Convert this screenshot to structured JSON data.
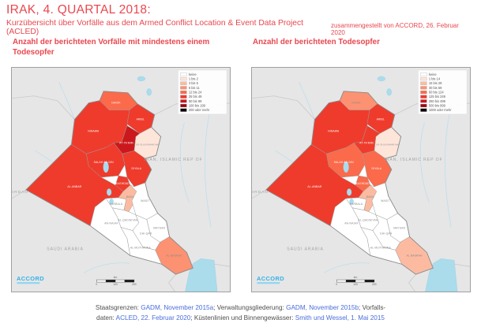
{
  "header": {
    "title": "IRAK, 4. QUARTAL 2018:",
    "subtitle": "Kurzübersicht über Vorfälle aus dem Armed Conflict Location & Event Data Project (ACLED)",
    "credit": "zusammengestellt von ACCORD, 26. Februar 2020"
  },
  "palette": [
    "#ffffff",
    "#fee5d9",
    "#fcbba1",
    "#fc9272",
    "#fb6a4a",
    "#ef3b2c",
    "#cb181d",
    "#99000d",
    "#000000"
  ],
  "water_color": "#aadcec",
  "regions": [
    {
      "id": "dihok",
      "label": "DIHOK"
    },
    {
      "id": "ninawa",
      "label": "NINAWA"
    },
    {
      "id": "arbil",
      "label": "ARBIL"
    },
    {
      "id": "sulaymaniyah",
      "label": "AS-SULAYMANIYAH"
    },
    {
      "id": "tamim",
      "label": "AT-TA'MIM"
    },
    {
      "id": "salahaddin",
      "label": "SALAH AD-DIN"
    },
    {
      "id": "diyala",
      "label": "DIYALA"
    },
    {
      "id": "baghdad",
      "label": "BAGHDAD"
    },
    {
      "id": "anbar",
      "label": "AL-ANBAR"
    },
    {
      "id": "karbala",
      "label": "KARBALA"
    },
    {
      "id": "babil",
      "label": "BABIL"
    },
    {
      "id": "wasit",
      "label": "WASIT"
    },
    {
      "id": "qadisiyah",
      "label": "AL-QADISIYAH"
    },
    {
      "id": "najaf",
      "label": "AN-NAJAF"
    },
    {
      "id": "maysan",
      "label": "MAYSAN"
    },
    {
      "id": "dhiqar",
      "label": "DHI-QAR"
    },
    {
      "id": "muthanna",
      "label": "AL-MUTHANNA"
    },
    {
      "id": "basrah",
      "label": "AL BASRAH"
    }
  ],
  "maps": [
    {
      "id": "incidents",
      "title_lines": [
        "Anzahl der berichteten Vorfälle mit mindestens einem",
        "Todesopfer"
      ],
      "legend_labels": [
        "keine",
        "1 bis 2",
        "3 bis 5",
        "6 bis 11",
        "12 bis 24",
        "25 bis 49",
        "50 bis 99",
        "100 bis 199",
        "200 oder mehr"
      ],
      "region_classes": {
        "dihok": 4,
        "ninawa": 5,
        "arbil": 5,
        "sulaymaniyah": 1,
        "tamim": 6,
        "salahaddin": 5,
        "diyala": 5,
        "baghdad": 5,
        "anbar": 5,
        "karbala": 0,
        "babil": 2,
        "wasit": 0,
        "qadisiyah": 0,
        "najaf": 0,
        "maysan": 0,
        "dhiqar": 0,
        "muthanna": 0,
        "basrah": 3
      }
    },
    {
      "id": "fatalities",
      "title_lines": [
        "Anzahl der berichteten Todesopfer"
      ],
      "legend_labels": [
        "keine",
        "1 bis 14",
        "15 bis 29",
        "30 bis 59",
        "60 bis 124",
        "125 bis 249",
        "250 bis 499",
        "500 bis 999",
        "1000 oder mehr"
      ],
      "region_classes": {
        "dihok": 3,
        "ninawa": 5,
        "arbil": 5,
        "sulaymaniyah": 1,
        "tamim": 5,
        "salahaddin": 4,
        "diyala": 4,
        "baghdad": 4,
        "anbar": 5,
        "karbala": 0,
        "babil": 2,
        "wasit": 0,
        "qadisiyah": 0,
        "najaf": 0,
        "maysan": 0,
        "dhiqar": 0,
        "muthanna": 0,
        "basrah": 2
      }
    }
  ],
  "map_furniture": {
    "logo_text": "ACCORD",
    "neighbor_labels": [
      "JORDAN",
      "SAUDI ARABIA",
      "IRAN, ISLAMIC REP OF"
    ],
    "scale_ticks": [
      "0",
      "100",
      "200"
    ],
    "scale_unit": "km"
  },
  "footer": {
    "lines": [
      [
        {
          "text": "Staatsgrenzen: "
        },
        {
          "text": "GADM, November 2015a",
          "link": true
        },
        {
          "text": "; Verwaltungsgliederung: "
        },
        {
          "text": "GADM, November 2015b",
          "link": true
        },
        {
          "text": "; Vorfalls-"
        }
      ],
      [
        {
          "text": "daten: "
        },
        {
          "text": "ACLED, 22. Februar 2020",
          "link": true
        },
        {
          "text": "; Küstenlinien und Binnengewässer: "
        },
        {
          "text": "Smith und Wessel, 1. Mai 2015",
          "link": true
        }
      ]
    ]
  }
}
